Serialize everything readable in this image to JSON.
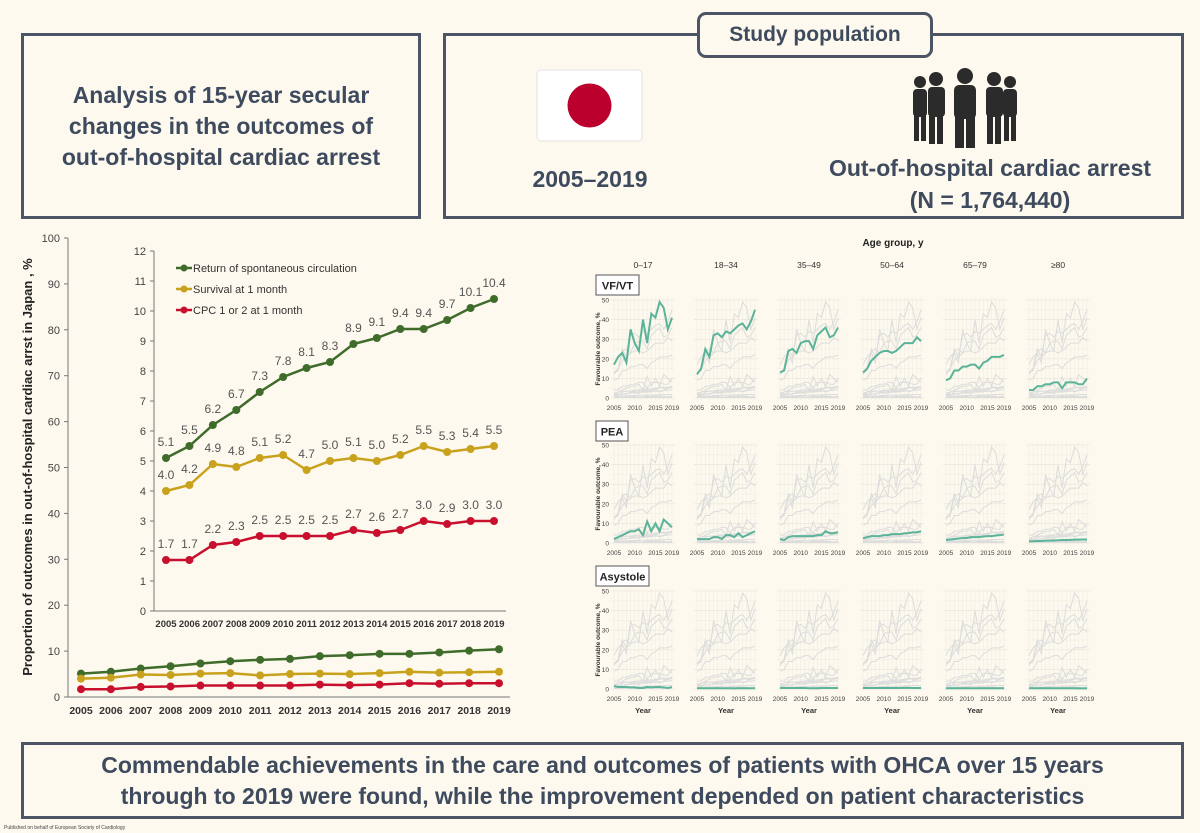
{
  "header": {
    "aim": "Analysis of 15-year secular changes in the outcomes of out-of-hospital cardiac arrest",
    "aim_lines": [
      "Analysis of 15-year secular",
      "changes in the outcomes of",
      "out-of-hospital cardiac arrest"
    ],
    "study_population_label": "Study population",
    "period": "2005–2019",
    "population_line1": "Out-of-hospital cardiac arrest",
    "population_line2": "(N = 1,764,440)",
    "flag_icon": "japan-flag-icon",
    "people_icon": "group-of-people-icon",
    "flag_color": "#bc002d"
  },
  "conclusion": {
    "line1": "Commendable achievements in the care and outcomes of patients with OHCA over 15 years",
    "line2": "through to 2019 were found, while the improvement depended on patient characteristics"
  },
  "footer": "Published on behalf of European Society of Cardiology",
  "chart_data": [
    {
      "type": "line",
      "ylabel": "Proportion of outcomes in out-of-hospital cardiac arrst in Japan , %",
      "x": [
        "2005",
        "2006",
        "2007",
        "2008",
        "2009",
        "2010",
        "2011",
        "2012",
        "2013",
        "2014",
        "2015",
        "2016",
        "2017",
        "2018",
        "2019"
      ],
      "ylim": [
        0,
        100
      ],
      "yticks": [
        "0",
        "10",
        "20",
        "30",
        "40",
        "50",
        "60",
        "70",
        "80",
        "90",
        "100"
      ],
      "inset": {
        "ylim": [
          0,
          12
        ],
        "yticks": [
          "0",
          "1",
          "2",
          "3",
          "4",
          "5",
          "6",
          "7",
          "8",
          "9",
          "10",
          "11",
          "12"
        ],
        "legend_placement": "top-left",
        "data_labels": true
      },
      "series": [
        {
          "name": "Return of spontaneous circulation",
          "color": "#3f6b2b",
          "values": [
            5.1,
            5.5,
            6.2,
            6.7,
            7.3,
            7.8,
            8.1,
            8.3,
            8.9,
            9.1,
            9.4,
            9.4,
            9.7,
            10.1,
            10.4
          ],
          "labels": [
            "5.1",
            "5.5",
            "6.2",
            "6.7",
            "7.3",
            "7.8",
            "8.1",
            "8.3",
            "8.9",
            "9.1",
            "9.4",
            "9.4",
            "9.7",
            "10.1",
            "10.4"
          ]
        },
        {
          "name": "Survival at 1 month",
          "color": "#c9a21d",
          "values": [
            4.0,
            4.2,
            4.9,
            4.8,
            5.1,
            5.2,
            4.7,
            5.0,
            5.1,
            5.0,
            5.2,
            5.5,
            5.3,
            5.4,
            5.5
          ],
          "labels": [
            "4.0",
            "4.2",
            "4.9",
            "4.8",
            "5.1",
            "5.2",
            "4.7",
            "5.0",
            "5.1",
            "5.0",
            "5.2",
            "5.5",
            "5.3",
            "5.4",
            "5.5"
          ]
        },
        {
          "name": "CPC 1 or 2 at 1 month",
          "color": "#c8102e",
          "values": [
            1.7,
            1.7,
            2.2,
            2.3,
            2.5,
            2.5,
            2.5,
            2.5,
            2.7,
            2.6,
            2.7,
            3.0,
            2.9,
            3.0,
            3.0
          ],
          "labels": [
            "1.7",
            "1.7",
            "2.2",
            "2.3",
            "2.5",
            "2.5",
            "2.5",
            "2.5",
            "2.7",
            "2.6",
            "2.7",
            "3.0",
            "2.9",
            "3.0",
            "3.0"
          ]
        }
      ]
    },
    {
      "type": "line",
      "title": "Age group, y",
      "xlabel": "Year",
      "ylabel": "Favourable outcome, %",
      "ylim": [
        0,
        50
      ],
      "yticks": [
        "0",
        "10",
        "20",
        "30",
        "40",
        "50"
      ],
      "xticks": [
        "2005",
        "2010",
        "2015",
        "2019"
      ],
      "years": [
        2005,
        2006,
        2007,
        2008,
        2009,
        2010,
        2011,
        2012,
        2013,
        2014,
        2015,
        2016,
        2017,
        2018,
        2019
      ],
      "columns": [
        "0–17",
        "18–34",
        "35–49",
        "50–64",
        "65–79",
        "≥80"
      ],
      "highlight_color": "#5bb39a",
      "background_color": "#dcdcdc",
      "grid": true,
      "rows": [
        {
          "name": "VF/VT",
          "series": [
            [
              17,
              21,
              23,
              18,
              35,
              28,
              24,
              40,
              28,
              43,
              41,
              49,
              46,
              35,
              41
            ],
            [
              12,
              15,
              25,
              21,
              32,
              33,
              31,
              34,
              33,
              35,
              37,
              38,
              35,
              39,
              45
            ],
            [
              13,
              14,
              24,
              25,
              23,
              28,
              29,
              29,
              25,
              32,
              34,
              36,
              31,
              32,
              36
            ],
            [
              13,
              15,
              19,
              21,
              23,
              24,
              24,
              23,
              24,
              26,
              28,
              28,
              28,
              31,
              29
            ],
            [
              9,
              10,
              14,
              14,
              16,
              16,
              17,
              17,
              15,
              18,
              19,
              21,
              21,
              21,
              22
            ],
            [
              4,
              4,
              6,
              6,
              7,
              7,
              8,
              8,
              5,
              8,
              8,
              8,
              7,
              7,
              10
            ]
          ]
        },
        {
          "name": "PEA",
          "series": [
            [
              2,
              3,
              4,
              5,
              6,
              6,
              7,
              4,
              11,
              6,
              10,
              6,
              12,
              10,
              8
            ],
            [
              2,
              2,
              2,
              2,
              3,
              3,
              2,
              4,
              4,
              3,
              5,
              3,
              4,
              5,
              6
            ],
            [
              2,
              1.5,
              3,
              3.5,
              3.5,
              3.5,
              3.5,
              3.5,
              3.5,
              4,
              4,
              6,
              5,
              5,
              5.5
            ],
            [
              2.5,
              3,
              3.5,
              3.5,
              3.5,
              4,
              4,
              4.5,
              4.5,
              4.5,
              5,
              5,
              5.5,
              5.5,
              6
            ],
            [
              1.5,
              1.8,
              2,
              2.3,
              2.5,
              2.5,
              3,
              3,
              3,
              3.3,
              3.5,
              3.5,
              3.8,
              4,
              4.3
            ],
            [
              0.8,
              0.9,
              1,
              1,
              1.2,
              1.3,
              1.3,
              1.4,
              1.5,
              1.5,
              1.6,
              1.7,
              1.7,
              1.8,
              1.8
            ]
          ]
        },
        {
          "name": "Asystole",
          "series": [
            [
              1.5,
              1,
              1,
              1,
              0.8,
              0.8,
              0.5,
              0.5,
              1,
              0.8,
              1,
              1,
              0.8,
              0.5,
              1
            ],
            [
              0.4,
              0.4,
              0.4,
              0.4,
              0.4,
              0.4,
              0.4,
              0.4,
              0.4,
              0.3,
              0.4,
              0.4,
              0.4,
              0.4,
              0.4
            ],
            [
              0.5,
              0.5,
              0.5,
              0.5,
              0.5,
              0.5,
              0.5,
              0.4,
              0.4,
              0.4,
              0.5,
              0.5,
              0.5,
              0.5,
              0.5
            ],
            [
              0.5,
              0.5,
              0.5,
              0.5,
              0.5,
              0.5,
              0.5,
              0.5,
              0.5,
              0.5,
              0.6,
              0.6,
              0.5,
              0.5,
              0.5
            ],
            [
              0.4,
              0.4,
              0.4,
              0.4,
              0.4,
              0.4,
              0.4,
              0.4,
              0.4,
              0.4,
              0.4,
              0.4,
              0.4,
              0.4,
              0.4
            ],
            [
              0.4,
              0.4,
              0.4,
              0.4,
              0.4,
              0.4,
              0.4,
              0.4,
              0.4,
              0.4,
              0.4,
              0.4,
              0.3,
              0.3,
              0.3
            ]
          ]
        }
      ]
    }
  ]
}
